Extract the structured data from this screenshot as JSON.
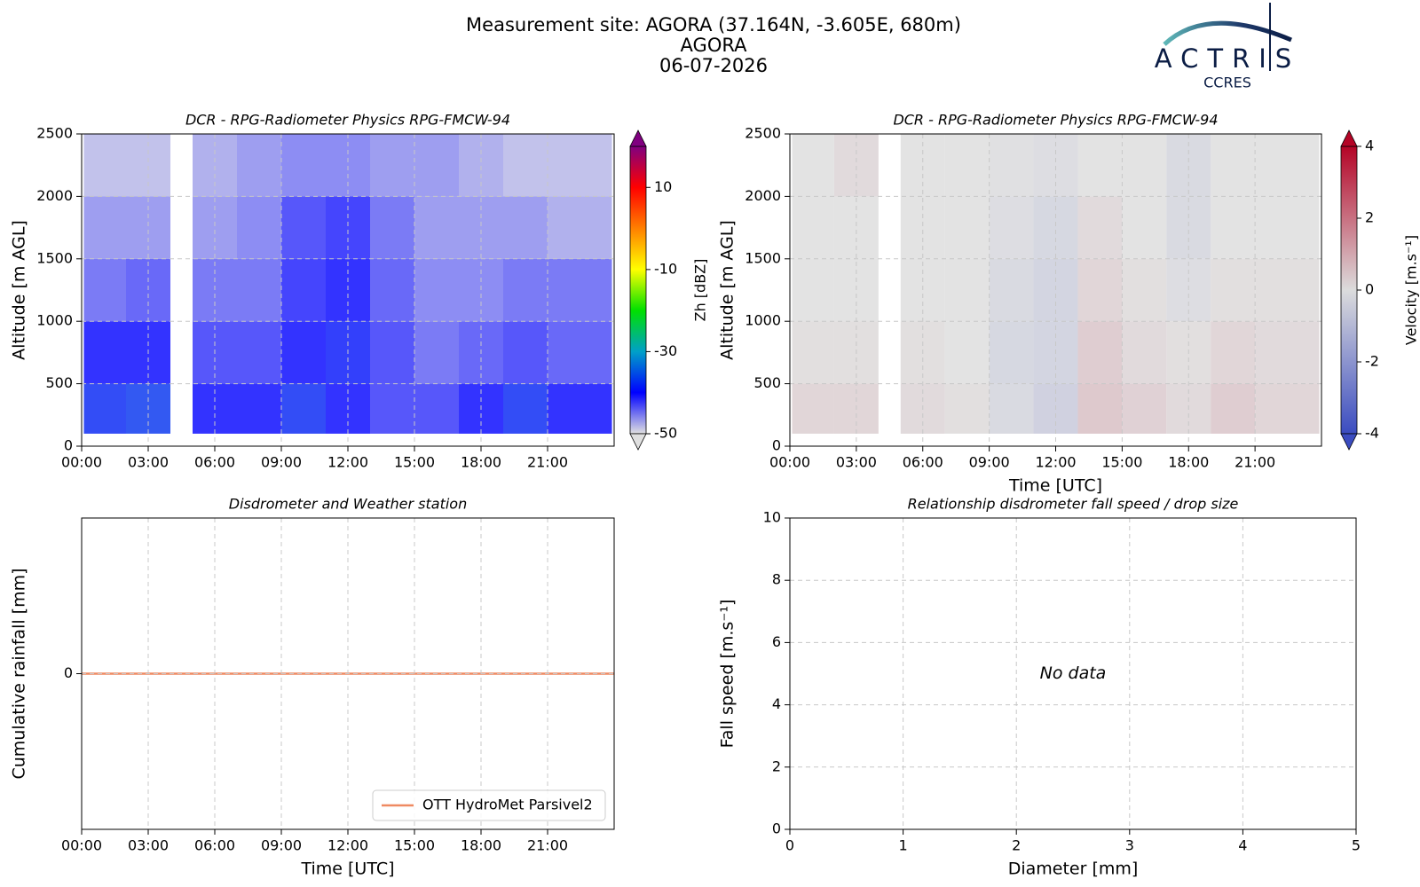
{
  "figure": {
    "title": [
      "Measurement site: AGORA (37.164N, -3.605E, 680m)",
      "AGORA",
      "06-07-2026"
    ],
    "logo": {
      "name": "ACTRIS",
      "subtitle": "CCRES"
    }
  },
  "chart_data": [
    {
      "type": "heatmap",
      "title": "DCR - RPG-Radiometer Physics RPG-FMCW-94",
      "ylabel": "Altitude [m AGL]",
      "x_bins": [
        0.1,
        2,
        4,
        5,
        7,
        9,
        11,
        13,
        15,
        17,
        19,
        21,
        23.9
      ],
      "y_bins": [
        100,
        500,
        1000,
        1500,
        2000,
        2500
      ],
      "values": [
        [
          -38,
          -37,
          null,
          -40,
          -40,
          -38,
          -40,
          -42,
          -42,
          -40,
          -38,
          -40
        ],
        [
          -40,
          -40,
          null,
          -42,
          -42,
          -40,
          -39,
          -42,
          -44,
          -43,
          -42,
          -43
        ],
        [
          -44,
          -43,
          null,
          -44,
          -44,
          -41,
          -40,
          -43,
          -45,
          -45,
          -44,
          -44
        ],
        [
          -46,
          -46,
          null,
          -46,
          -45,
          -42,
          -41,
          -44,
          -46,
          -46,
          -46,
          -47
        ],
        [
          -48,
          -48,
          null,
          -47,
          -46,
          -45,
          -45,
          -46,
          -46,
          -47,
          -48,
          -48
        ]
      ],
      "xlim": [
        0,
        24
      ],
      "xticks": [
        {
          "value": 0,
          "label": "00:00"
        },
        {
          "value": 3,
          "label": "03:00"
        },
        {
          "value": 6,
          "label": "06:00"
        },
        {
          "value": 9,
          "label": "09:00"
        },
        {
          "value": 12,
          "label": "12:00"
        },
        {
          "value": 15,
          "label": "15:00"
        },
        {
          "value": 18,
          "label": "18:00"
        },
        {
          "value": 21,
          "label": "21:00"
        }
      ],
      "ylim": [
        0,
        2500
      ],
      "yticks": [
        0,
        500,
        1000,
        1500,
        2000,
        2500
      ],
      "grid": true,
      "zlim": [
        -50,
        20
      ],
      "zticks": [
        -50,
        -30,
        -10,
        10
      ],
      "zlabel": "Zh [dBZ]",
      "colormap": [
        "#e0e0e0",
        "#0000ff",
        "#00a0c8",
        "#00e000",
        "#ffff00",
        "#ff8000",
        "#ff0000",
        "#800080"
      ]
    },
    {
      "type": "heatmap",
      "title": "DCR - RPG-Radiometer Physics RPG-FMCW-94",
      "ylabel": "Altitude [m AGL]",
      "xlabel": "Time [UTC]",
      "x_bins": [
        0.1,
        2,
        4,
        5,
        7,
        9,
        11,
        13,
        15,
        17,
        19,
        21,
        23.9
      ],
      "y_bins": [
        100,
        500,
        1000,
        1500,
        2000,
        2500
      ],
      "values": [
        [
          0.3,
          0.3,
          null,
          0.2,
          0.1,
          -0.3,
          -0.6,
          0.6,
          0.4,
          0.2,
          0.5,
          0.3
        ],
        [
          0.1,
          0.1,
          null,
          0.1,
          0,
          -0.4,
          -0.5,
          0.5,
          0.2,
          0.1,
          0.3,
          0.2
        ],
        [
          0,
          0,
          null,
          0,
          0,
          -0.3,
          -0.5,
          0.3,
          0.1,
          -0.2,
          0.1,
          0.1
        ],
        [
          0,
          0,
          null,
          0,
          0,
          -0.2,
          -0.4,
          0.2,
          0,
          -0.3,
          0,
          0
        ],
        [
          0,
          0.2,
          null,
          0,
          0,
          -0.1,
          -0.2,
          0,
          0,
          -0.3,
          0,
          0
        ]
      ],
      "xlim": [
        0,
        24
      ],
      "xticks": [
        {
          "value": 0,
          "label": "00:00"
        },
        {
          "value": 3,
          "label": "03:00"
        },
        {
          "value": 6,
          "label": "06:00"
        },
        {
          "value": 9,
          "label": "09:00"
        },
        {
          "value": 12,
          "label": "12:00"
        },
        {
          "value": 15,
          "label": "15:00"
        },
        {
          "value": 18,
          "label": "18:00"
        },
        {
          "value": 21,
          "label": "21:00"
        }
      ],
      "ylim": [
        0,
        2500
      ],
      "yticks": [
        0,
        500,
        1000,
        1500,
        2000,
        2500
      ],
      "grid": true,
      "zlim": [
        -4,
        4
      ],
      "zticks": [
        -4,
        -2,
        0,
        2,
        4
      ],
      "zlabel": "Velocity [m.s⁻¹]",
      "colormap": [
        "#3b4cc0",
        "#dcdcdc",
        "#b40426"
      ]
    },
    {
      "type": "line",
      "title": "Disdrometer and Weather station",
      "ylabel": "Cumulative rainfall [mm]",
      "xlabel": "Time [UTC]",
      "x": [
        0,
        24
      ],
      "series": [
        {
          "name": "OTT HydroMet Parsivel2",
          "color": "#ef8a62",
          "values": [
            0,
            0
          ]
        }
      ],
      "xlim": [
        0,
        24
      ],
      "xticks": [
        {
          "value": 0,
          "label": "00:00"
        },
        {
          "value": 3,
          "label": "03:00"
        },
        {
          "value": 6,
          "label": "06:00"
        },
        {
          "value": 9,
          "label": "09:00"
        },
        {
          "value": 12,
          "label": "12:00"
        },
        {
          "value": 15,
          "label": "15:00"
        },
        {
          "value": 18,
          "label": "18:00"
        },
        {
          "value": 21,
          "label": "21:00"
        }
      ],
      "ylim": [
        -1,
        1
      ],
      "yticks": [
        0
      ],
      "grid": true,
      "legend": "lower-right"
    },
    {
      "type": "scatter",
      "title": "Relationship disdrometer fall speed / drop size",
      "ylabel": "Fall speed [m.s⁻¹]",
      "xlabel": "Diameter [mm]",
      "annotation": "No data",
      "xlim": [
        0,
        5
      ],
      "xticks": [
        0,
        1,
        2,
        3,
        4,
        5
      ],
      "ylim": [
        0,
        10
      ],
      "yticks": [
        0,
        2,
        4,
        6,
        8,
        10
      ],
      "grid": true
    }
  ]
}
